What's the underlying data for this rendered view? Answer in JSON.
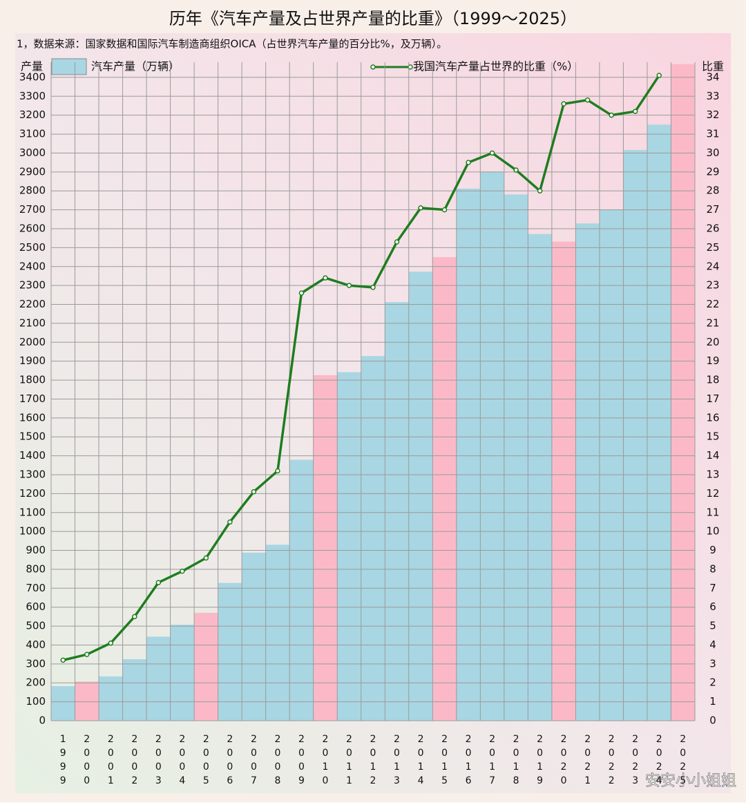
{
  "chart_data": {
    "type": "bar_line",
    "title": "历年《汽车产量及占世界产量的比重》（1999～2025）",
    "subtitle": "1，数据来源：国家数据和国际汽车制造商组织OICA（占世界汽车产量的百分比%，及万辆）。",
    "y_label": "产量",
    "y2_label": "比重",
    "watermark": "安安小小姐姐",
    "categories": [
      "1999",
      "2000",
      "2001",
      "2002",
      "2003",
      "2004",
      "2005",
      "2006",
      "2007",
      "2008",
      "2009",
      "2010",
      "2011",
      "2012",
      "2013",
      "2014",
      "2015",
      "2016",
      "2017",
      "2018",
      "2019",
      "2020",
      "2021",
      "2022",
      "2023",
      "2024",
      "2025"
    ],
    "series": [
      {
        "name": "汽车产量（万辆）",
        "type": "bar",
        "color": "#a9d6e3",
        "colors": [
          "#a9d6e3",
          "#fbb9c8",
          "#a9d6e3",
          "#a9d6e3",
          "#a9d6e3",
          "#a9d6e3",
          "#fbb9c8",
          "#a9d6e3",
          "#a9d6e3",
          "#a9d6e3",
          "#a9d6e3",
          "#fbb9c8",
          "#a9d6e3",
          "#a9d6e3",
          "#a9d6e3",
          "#a9d6e3",
          "#fbb9c8",
          "#a9d6e3",
          "#a9d6e3",
          "#a9d6e3",
          "#a9d6e3",
          "#fbb9c8",
          "#a9d6e3",
          "#a9d6e3",
          "#a9d6e3",
          "#a9d6e3",
          "#fbb9c8"
        ],
        "values": [
          183,
          207,
          234,
          325,
          444,
          507,
          570,
          728,
          888,
          930,
          1379,
          1826,
          1842,
          1927,
          2212,
          2373,
          2450,
          2812,
          2902,
          2781,
          2572,
          2532,
          2628,
          2702,
          3016,
          3150,
          3470
        ]
      },
      {
        "name": "我国汽车产量占世界的比重（%）",
        "type": "line",
        "axis": "y2",
        "color": "#1e7d1e",
        "values": [
          3.2,
          3.5,
          4.1,
          5.5,
          7.3,
          7.9,
          8.6,
          10.5,
          12.1,
          13.2,
          22.6,
          23.4,
          23.0,
          22.9,
          25.3,
          27.1,
          27.0,
          29.5,
          30.0,
          29.1,
          28.0,
          32.6,
          32.8,
          32.0,
          32.2,
          34.1,
          null
        ]
      }
    ],
    "ylim": [
      0,
      3480
    ],
    "yticks": [
      0,
      100,
      200,
      300,
      400,
      500,
      600,
      700,
      800,
      900,
      1000,
      1100,
      1200,
      1300,
      1400,
      1500,
      1600,
      1700,
      1800,
      1900,
      2000,
      2100,
      2200,
      2300,
      2400,
      2500,
      2600,
      2700,
      2800,
      2900,
      3000,
      3100,
      3200,
      3300,
      3400
    ],
    "y2lim": [
      0,
      34.8
    ],
    "y2ticks": [
      0,
      1,
      2,
      3,
      4,
      5,
      6,
      7,
      8,
      9,
      10,
      11,
      12,
      13,
      14,
      15,
      16,
      17,
      18,
      19,
      20,
      21,
      22,
      23,
      24,
      25,
      26,
      27,
      28,
      29,
      30,
      31,
      32,
      33,
      34
    ],
    "grid": true
  }
}
